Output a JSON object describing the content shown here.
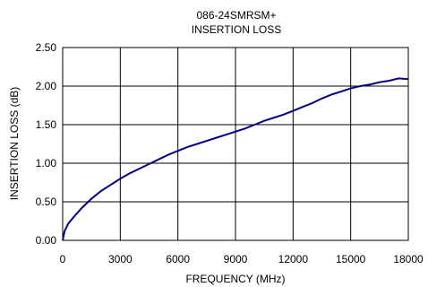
{
  "chart_data": {
    "type": "line",
    "title": "086-24SMRSM+",
    "subtitle": "INSERTION LOSS",
    "xlabel": "FREQUENCY (MHz)",
    "ylabel": "INSERTION LOSS (dB)",
    "xlim": [
      0,
      18000
    ],
    "ylim": [
      0,
      2.5
    ],
    "x_ticks": [
      "0",
      "3000",
      "6000",
      "9000",
      "12000",
      "15000",
      "18000"
    ],
    "y_ticks": [
      "0.00",
      "0.50",
      "1.00",
      "1.50",
      "2.00",
      "2.50"
    ],
    "grid": true,
    "legend": "none",
    "series_color": "#000080",
    "series": [
      {
        "x": [
          0,
          100,
          300,
          600,
          1000,
          1500,
          2000,
          2500,
          3000,
          3500,
          4000,
          4500,
          5000,
          5500,
          6000,
          6500,
          7000,
          7500,
          8000,
          8500,
          9000,
          9500,
          10000,
          10500,
          11000,
          11500,
          12000,
          12500,
          13000,
          13500,
          14000,
          14500,
          15000,
          15500,
          16000,
          16500,
          17000,
          17500,
          18000
        ],
        "y": [
          0.0,
          0.12,
          0.22,
          0.31,
          0.42,
          0.54,
          0.64,
          0.72,
          0.8,
          0.87,
          0.93,
          0.99,
          1.05,
          1.11,
          1.16,
          1.21,
          1.25,
          1.29,
          1.33,
          1.37,
          1.41,
          1.45,
          1.5,
          1.55,
          1.59,
          1.63,
          1.68,
          1.73,
          1.78,
          1.84,
          1.89,
          1.93,
          1.97,
          2.0,
          2.02,
          2.05,
          2.07,
          2.1,
          2.09
        ]
      }
    ]
  }
}
